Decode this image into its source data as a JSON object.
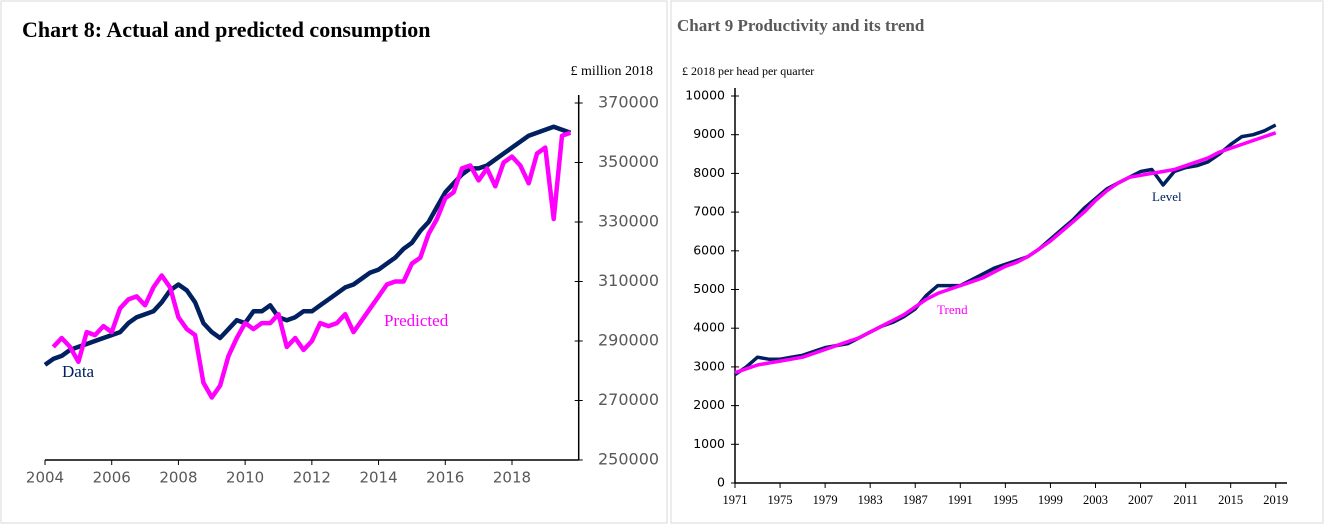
{
  "chart_data": [
    {
      "type": "line",
      "title": "Chart 8:  Actual and predicted consumption",
      "ylabel": "£ million 2018",
      "x": [
        2004,
        2004.25,
        2004.5,
        2004.75,
        2005,
        2005.25,
        2005.5,
        2005.75,
        2006,
        2006.25,
        2006.5,
        2006.75,
        2007,
        2007.25,
        2007.5,
        2007.75,
        2008,
        2008.25,
        2008.5,
        2008.75,
        2009,
        2009.25,
        2009.5,
        2009.75,
        2010,
        2010.25,
        2010.5,
        2010.75,
        2011,
        2011.25,
        2011.5,
        2011.75,
        2012,
        2012.25,
        2012.5,
        2012.75,
        2013,
        2013.25,
        2013.5,
        2013.75,
        2014,
        2014.25,
        2014.5,
        2014.75,
        2015,
        2015.25,
        2015.5,
        2015.75,
        2016,
        2016.25,
        2016.5,
        2016.75,
        2017,
        2017.25,
        2017.5,
        2017.75,
        2018,
        2018.25,
        2018.5,
        2018.75,
        2019,
        2019.25,
        2019.5,
        2019.75
      ],
      "series": [
        {
          "name": "Data",
          "color": "#002060",
          "values": [
            282000,
            284000,
            285000,
            287000,
            288000,
            289000,
            290000,
            291000,
            292000,
            293000,
            296000,
            298000,
            299000,
            300000,
            303000,
            307000,
            309000,
            307000,
            303000,
            296000,
            293000,
            291000,
            294000,
            297000,
            296000,
            300000,
            300000,
            302000,
            298000,
            297000,
            298000,
            300000,
            300000,
            302000,
            304000,
            306000,
            308000,
            309000,
            311000,
            313000,
            314000,
            316000,
            318000,
            321000,
            323000,
            327000,
            330000,
            335000,
            340000,
            343000,
            346000,
            348000,
            348000,
            349000,
            351000,
            353000,
            355000,
            357000,
            359000,
            360000,
            361000,
            362000,
            361000,
            360000
          ]
        },
        {
          "name": "Predicted",
          "color": "#ff00ff",
          "values": [
            null,
            288000,
            291000,
            288000,
            283000,
            293000,
            292000,
            295000,
            293000,
            301000,
            304000,
            305000,
            302000,
            308000,
            312000,
            308000,
            298000,
            294000,
            292000,
            276000,
            271000,
            275000,
            285000,
            291000,
            296000,
            294000,
            296000,
            296000,
            299000,
            288000,
            291000,
            287000,
            290000,
            296000,
            295000,
            296000,
            299000,
            293000,
            297000,
            301000,
            305000,
            309000,
            310000,
            310000,
            316000,
            318000,
            326000,
            331000,
            338000,
            340000,
            348000,
            349000,
            344000,
            348000,
            342000,
            350000,
            352000,
            349000,
            343000,
            353000,
            355000,
            331000,
            359000,
            360000
          ]
        }
      ],
      "ylim": [
        250000,
        370000
      ],
      "yticks": [
        250000,
        270000,
        290000,
        310000,
        330000,
        350000,
        370000
      ],
      "xlim": [
        2004,
        2020
      ],
      "xticks": [
        2004,
        2006,
        2008,
        2010,
        2012,
        2014,
        2016,
        2018
      ],
      "grid": false
    },
    {
      "type": "line",
      "title": "Chart  9  Productivity and its trend",
      "ylabel": "£ 2018 per head per quarter",
      "x": [
        1971,
        1972,
        1973,
        1974,
        1975,
        1976,
        1977,
        1978,
        1979,
        1980,
        1981,
        1982,
        1983,
        1984,
        1985,
        1986,
        1987,
        1988,
        1989,
        1990,
        1991,
        1992,
        1993,
        1994,
        1995,
        1996,
        1997,
        1998,
        1999,
        2000,
        2001,
        2002,
        2003,
        2004,
        2005,
        2006,
        2007,
        2008,
        2009,
        2010,
        2011,
        2012,
        2013,
        2014,
        2015,
        2016,
        2017,
        2018,
        2019
      ],
      "series": [
        {
          "name": "Level",
          "color": "#002060",
          "values": [
            2800,
            3000,
            3250,
            3200,
            3200,
            3250,
            3300,
            3400,
            3500,
            3550,
            3600,
            3750,
            3900,
            4050,
            4150,
            4300,
            4500,
            4850,
            5100,
            5100,
            5100,
            5250,
            5400,
            5550,
            5650,
            5750,
            5850,
            6050,
            6300,
            6550,
            6800,
            7100,
            7350,
            7600,
            7750,
            7900,
            8050,
            8100,
            7700,
            8050,
            8150,
            8200,
            8300,
            8500,
            8750,
            8950,
            9000,
            9100,
            9250
          ]
        },
        {
          "name": "Trend",
          "color": "#ff00ff",
          "values": [
            2850,
            2950,
            3050,
            3100,
            3150,
            3200,
            3250,
            3350,
            3450,
            3550,
            3650,
            3750,
            3900,
            4050,
            4200,
            4350,
            4550,
            4750,
            4900,
            5000,
            5100,
            5200,
            5300,
            5450,
            5600,
            5700,
            5850,
            6050,
            6250,
            6500,
            6750,
            7000,
            7300,
            7550,
            7750,
            7900,
            7950,
            8000,
            8050,
            8100,
            8200,
            8300,
            8400,
            8550,
            8650,
            8750,
            8850,
            8950,
            9050
          ]
        }
      ],
      "ylim": [
        0,
        10000
      ],
      "yticks": [
        0,
        1000,
        2000,
        3000,
        4000,
        5000,
        6000,
        7000,
        8000,
        9000,
        10000
      ],
      "xlim": [
        1971,
        2020
      ],
      "xticks": [
        1971,
        1975,
        1979,
        1983,
        1987,
        1991,
        1995,
        1999,
        2003,
        2007,
        2011,
        2015,
        2019
      ],
      "grid": false
    }
  ]
}
